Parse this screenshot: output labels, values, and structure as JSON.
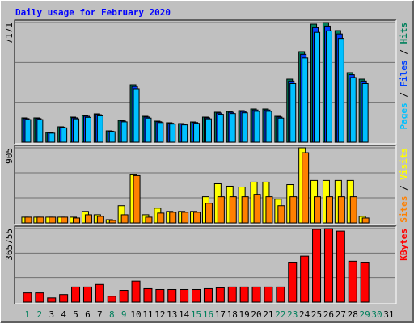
{
  "chart_data": [
    {
      "type": "bar",
      "title": "Daily usage for February 2020",
      "categories": [
        "1",
        "2",
        "3",
        "4",
        "5",
        "6",
        "7",
        "8",
        "9",
        "10",
        "11",
        "12",
        "13",
        "14",
        "15",
        "16",
        "17",
        "18",
        "19",
        "20",
        "21",
        "22",
        "23",
        "24",
        "25",
        "26",
        "27",
        "28",
        "29",
        "30",
        "31"
      ],
      "category_colors": [
        "#00805c",
        "#00805c",
        "#000000",
        "#000000",
        "#000000",
        "#000000",
        "#000000",
        "#00805c",
        "#00805c",
        "#000000",
        "#000000",
        "#000000",
        "#000000",
        "#000000",
        "#00805c",
        "#00805c",
        "#000000",
        "#000000",
        "#000000",
        "#000000",
        "#000000",
        "#00805c",
        "#00805c",
        "#000000",
        "#000000",
        "#000000",
        "#000000",
        "#000000",
        "#00805c",
        "#00805c",
        "#000000"
      ],
      "legend_separator": " / ",
      "ylim": [
        0,
        7171
      ],
      "yticks": [
        7171
      ],
      "grid": true,
      "series": [
        {
          "name": "Pages",
          "color": "#00c0ff",
          "values": [
            1352,
            1352,
            540,
            857,
            1397,
            1487,
            1577,
            631,
            1216,
            3199,
            1442,
            1172,
            1082,
            1036,
            1126,
            1397,
            1667,
            1712,
            1758,
            1848,
            1848,
            1442,
            3514,
            5047,
            6579,
            6669,
            6218,
            3875,
            3514,
            null,
            null
          ]
        },
        {
          "name": "Files",
          "color": "#0040ff",
          "values": [
            1410,
            1410,
            564,
            893,
            1457,
            1551,
            1645,
            658,
            1269,
            3337,
            1504,
            1222,
            1128,
            1081,
            1175,
            1457,
            1739,
            1786,
            1833,
            1927,
            1927,
            1504,
            3666,
            5264,
            6862,
            6956,
            6485,
            4042,
            3666,
            null,
            null
          ]
        },
        {
          "name": "Hits",
          "color": "#00805c",
          "values": [
            1454,
            1454,
            581,
            921,
            1502,
            1599,
            1696,
            678,
            1308,
            3440,
            1550,
            1260,
            1163,
            1114,
            1211,
            1502,
            1793,
            1841,
            1890,
            1987,
            1987,
            1550,
            3779,
            5427,
            7074,
            7171,
            6686,
            4167,
            3779,
            null,
            null
          ]
        }
      ]
    },
    {
      "type": "bar",
      "ylim": [
        0,
        905
      ],
      "yticks": [
        905
      ],
      "grid": true,
      "series": [
        {
          "name": "Sites",
          "color": "#ff8000",
          "values": [
            69,
            69,
            69,
            69,
            59,
            98,
            79,
            30,
            98,
            570,
            69,
            118,
            128,
            128,
            128,
            236,
            315,
            315,
            315,
            344,
            315,
            207,
            315,
            846,
            315,
            315,
            315,
            315,
            59,
            null,
            null
          ]
        },
        {
          "name": "Visits",
          "color": "#ffff00",
          "values": [
            69,
            69,
            69,
            69,
            69,
            138,
            98,
            39,
            207,
            580,
            98,
            177,
            138,
            138,
            138,
            315,
            472,
            443,
            433,
            492,
            492,
            285,
            462,
            905,
            512,
            512,
            512,
            512,
            79,
            null,
            null
          ]
        }
      ]
    },
    {
      "type": "bar",
      "ylim": [
        0,
        365755
      ],
      "yticks": [
        365755
      ],
      "grid": true,
      "series": [
        {
          "name": "KBytes",
          "color": "#ff0000",
          "values": [
            45720,
            45720,
            20780,
            37405,
            74811,
            74811,
            87280,
            29094,
            58187,
            103906,
            66500,
            62343,
            62343,
            62343,
            62343,
            66500,
            70655,
            74811,
            74811,
            74811,
            74811,
            74811,
            195343,
            228593,
            362000,
            365755,
            353285,
            203656,
            195343,
            null,
            null
          ]
        }
      ]
    }
  ]
}
